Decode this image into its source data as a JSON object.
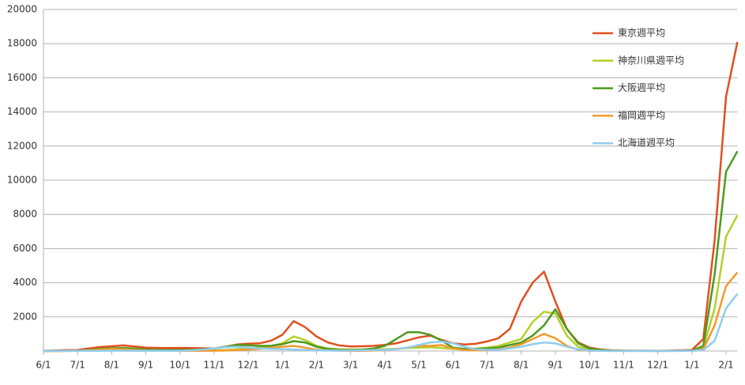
{
  "chart_data": {
    "type": "line",
    "categories": [
      "6/1",
      null,
      null,
      "7/1",
      null,
      null,
      "8/1",
      null,
      null,
      "9/1",
      null,
      null,
      "10/1",
      null,
      null,
      "11/1",
      null,
      null,
      "12/1",
      null,
      null,
      "1/1",
      null,
      null,
      "2/1",
      null,
      null,
      "3/1",
      null,
      null,
      "4/1",
      null,
      null,
      "5/1",
      null,
      null,
      "6/1",
      null,
      null,
      "7/1",
      null,
      null,
      "8/1",
      null,
      null,
      "9/1",
      null,
      null,
      "10/1",
      null,
      null,
      "11/1",
      null,
      null,
      "12/1",
      null,
      null,
      "1/1",
      null,
      null,
      "2/1",
      null
    ],
    "series": [
      {
        "name": "東京週平均",
        "color": "#e0501d",
        "values": [
          20,
          30,
          50,
          60,
          150,
          230,
          280,
          330,
          270,
          200,
          180,
          170,
          180,
          170,
          160,
          150,
          250,
          380,
          430,
          450,
          600,
          950,
          1750,
          1400,
          850,
          500,
          330,
          270,
          280,
          300,
          360,
          450,
          620,
          800,
          900,
          650,
          450,
          380,
          420,
          560,
          750,
          1300,
          2900,
          4000,
          4650,
          2900,
          1300,
          500,
          200,
          90,
          40,
          25,
          20,
          20,
          15,
          25,
          40,
          60,
          700,
          6500,
          14900,
          18100
        ]
      },
      {
        "name": "神奈川県週平均",
        "color": "#b5cf2b",
        "values": [
          5,
          5,
          10,
          20,
          40,
          60,
          70,
          60,
          50,
          40,
          40,
          35,
          30,
          30,
          30,
          40,
          60,
          100,
          150,
          200,
          300,
          450,
          850,
          650,
          300,
          150,
          100,
          90,
          90,
          100,
          110,
          130,
          170,
          200,
          220,
          180,
          120,
          110,
          150,
          200,
          300,
          500,
          700,
          1700,
          2300,
          2200,
          900,
          250,
          80,
          40,
          20,
          10,
          8,
          8,
          5,
          8,
          12,
          20,
          200,
          2500,
          6700,
          7950
        ]
      },
      {
        "name": "大阪週平均",
        "color": "#4e9a1e",
        "values": [
          2,
          5,
          10,
          20,
          60,
          120,
          160,
          180,
          140,
          90,
          70,
          60,
          60,
          70,
          100,
          150,
          250,
          350,
          330,
          300,
          300,
          400,
          580,
          500,
          250,
          120,
          70,
          60,
          80,
          150,
          300,
          700,
          1100,
          1100,
          950,
          600,
          200,
          120,
          120,
          150,
          200,
          350,
          500,
          900,
          1500,
          2450,
          1300,
          450,
          150,
          60,
          25,
          10,
          8,
          8,
          5,
          8,
          12,
          20,
          300,
          4500,
          10500,
          11700
        ]
      },
      {
        "name": "福岡週平均",
        "color": "#f39a2c",
        "values": [
          0,
          0,
          2,
          10,
          40,
          80,
          120,
          100,
          60,
          30,
          20,
          15,
          15,
          15,
          15,
          20,
          30,
          50,
          80,
          120,
          180,
          250,
          300,
          200,
          80,
          40,
          20,
          15,
          15,
          30,
          60,
          120,
          200,
          300,
          300,
          350,
          150,
          60,
          40,
          50,
          100,
          200,
          400,
          700,
          1000,
          750,
          300,
          80,
          20,
          8,
          5,
          3,
          3,
          3,
          3,
          3,
          5,
          10,
          100,
          1500,
          3800,
          4600
        ]
      },
      {
        "name": "北海道週平均",
        "color": "#8fcdee",
        "values": [
          10,
          10,
          10,
          10,
          10,
          15,
          20,
          20,
          15,
          15,
          10,
          10,
          20,
          40,
          80,
          150,
          220,
          250,
          200,
          150,
          120,
          100,
          90,
          60,
          40,
          30,
          25,
          30,
          40,
          60,
          70,
          100,
          200,
          350,
          500,
          550,
          450,
          250,
          100,
          70,
          80,
          150,
          250,
          400,
          500,
          450,
          250,
          100,
          30,
          10,
          5,
          5,
          5,
          5,
          5,
          5,
          8,
          10,
          50,
          600,
          2500,
          3350
        ]
      }
    ],
    "ylim": [
      0,
      20000
    ],
    "yticks": [
      2000,
      4000,
      6000,
      8000,
      10000,
      12000,
      14000,
      16000,
      18000,
      20000
    ],
    "grid": true
  }
}
